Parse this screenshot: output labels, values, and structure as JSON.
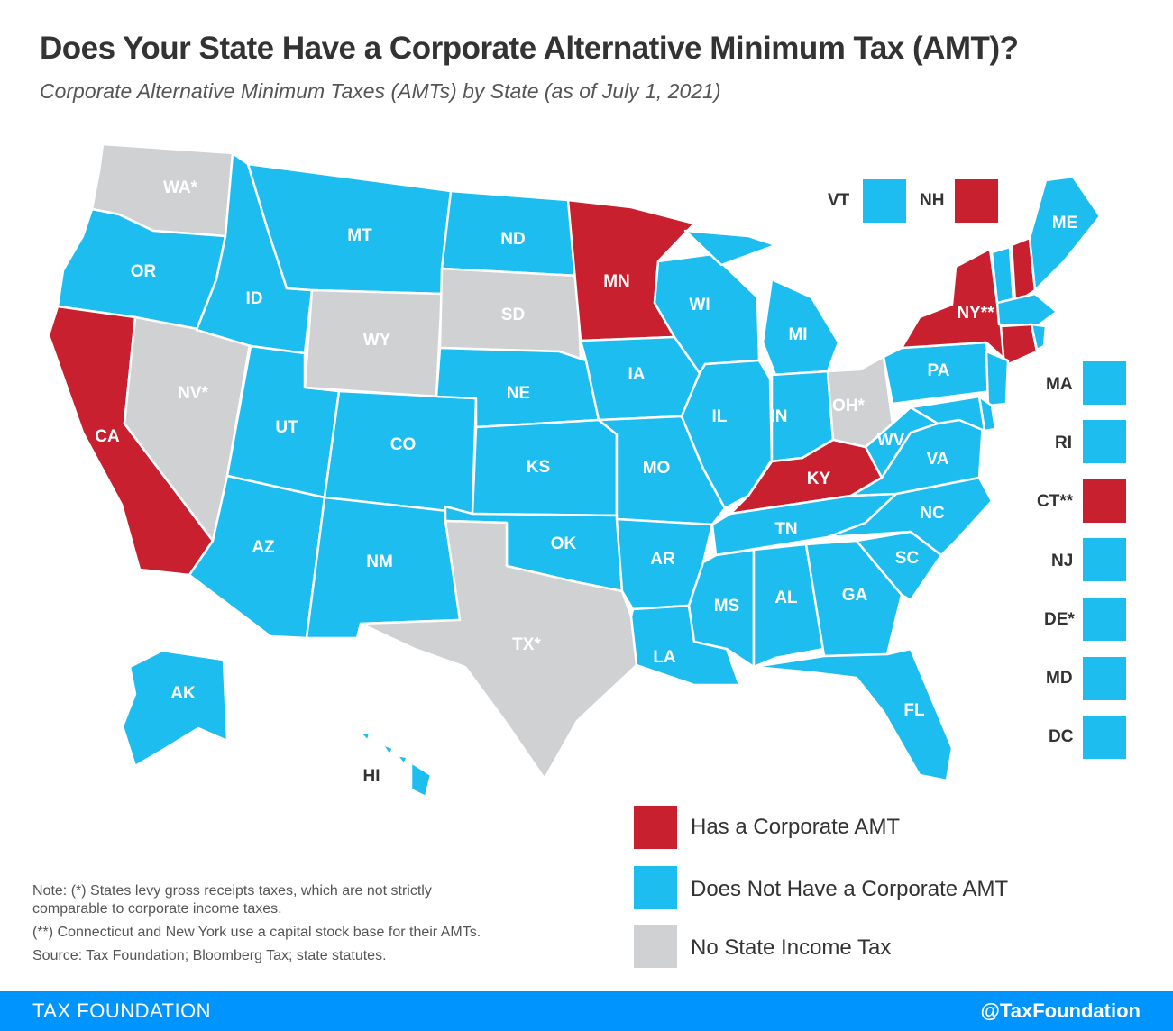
{
  "header": {
    "title": "Does Your State Have a Corporate Alternative Minimum Tax (AMT)?",
    "subtitle": "Corporate Alternative Minimum Taxes (AMTs) by State (as of July 1, 2021)"
  },
  "colors": {
    "amt": "#c8202f",
    "no_amt": "#1dbdef",
    "no_income_tax": "#d0d1d3",
    "footer": "#0094ff"
  },
  "states": {
    "WA": {
      "label": "WA*",
      "cat": "none"
    },
    "OR": {
      "label": "OR",
      "cat": "no"
    },
    "CA": {
      "label": "CA",
      "cat": "amt"
    },
    "NV": {
      "label": "NV*",
      "cat": "none"
    },
    "ID": {
      "label": "ID",
      "cat": "no"
    },
    "MT": {
      "label": "MT",
      "cat": "no"
    },
    "WY": {
      "label": "WY",
      "cat": "none"
    },
    "UT": {
      "label": "UT",
      "cat": "no"
    },
    "CO": {
      "label": "CO",
      "cat": "no"
    },
    "AZ": {
      "label": "AZ",
      "cat": "no"
    },
    "NM": {
      "label": "NM",
      "cat": "no"
    },
    "ND": {
      "label": "ND",
      "cat": "no"
    },
    "SD": {
      "label": "SD",
      "cat": "none"
    },
    "NE": {
      "label": "NE",
      "cat": "no"
    },
    "KS": {
      "label": "KS",
      "cat": "no"
    },
    "OK": {
      "label": "OK",
      "cat": "no"
    },
    "TX": {
      "label": "TX*",
      "cat": "none"
    },
    "MN": {
      "label": "MN",
      "cat": "amt"
    },
    "IA": {
      "label": "IA",
      "cat": "no"
    },
    "MO": {
      "label": "MO",
      "cat": "no"
    },
    "AR": {
      "label": "AR",
      "cat": "no"
    },
    "LA": {
      "label": "LA",
      "cat": "no"
    },
    "WI": {
      "label": "WI",
      "cat": "no"
    },
    "IL": {
      "label": "IL",
      "cat": "no"
    },
    "MI": {
      "label": "MI",
      "cat": "no"
    },
    "IN": {
      "label": "IN",
      "cat": "no"
    },
    "OH": {
      "label": "OH*",
      "cat": "none"
    },
    "KY": {
      "label": "KY",
      "cat": "amt"
    },
    "TN": {
      "label": "TN",
      "cat": "no"
    },
    "MS": {
      "label": "MS",
      "cat": "no"
    },
    "AL": {
      "label": "AL",
      "cat": "no"
    },
    "GA": {
      "label": "GA",
      "cat": "no"
    },
    "FL": {
      "label": "FL",
      "cat": "no"
    },
    "SC": {
      "label": "SC",
      "cat": "no"
    },
    "NC": {
      "label": "NC",
      "cat": "no"
    },
    "VA": {
      "label": "VA",
      "cat": "no"
    },
    "WV": {
      "label": "WV",
      "cat": "no"
    },
    "PA": {
      "label": "PA",
      "cat": "no"
    },
    "NY": {
      "label": "NY**",
      "cat": "amt"
    },
    "ME": {
      "label": "ME",
      "cat": "no"
    },
    "AK": {
      "label": "AK",
      "cat": "no"
    },
    "HI": {
      "label": "HI",
      "cat": "no"
    }
  },
  "small_states": {
    "VT": {
      "label": "VT",
      "cat": "no"
    },
    "NH": {
      "label": "NH",
      "cat": "amt"
    },
    "MA": {
      "label": "MA",
      "cat": "no"
    },
    "RI": {
      "label": "RI",
      "cat": "no"
    },
    "CT": {
      "label": "CT**",
      "cat": "amt"
    },
    "NJ": {
      "label": "NJ",
      "cat": "no"
    },
    "DE": {
      "label": "DE*",
      "cat": "no"
    },
    "MD": {
      "label": "MD",
      "cat": "no"
    },
    "DC": {
      "label": "DC",
      "cat": "no"
    }
  },
  "legend": {
    "amt": "Has a Corporate AMT",
    "no_amt": "Does Not Have a Corporate AMT",
    "none": "No State Income Tax"
  },
  "notes": {
    "line1": "Note: (*) States levy gross receipts taxes, which are not strictly comparable to corporate income taxes.",
    "line2": "(**) Connecticut and New York use a capital stock base for their AMTs.",
    "source": "Source: Tax Foundation; Bloomberg Tax; state statutes."
  },
  "footer": {
    "brand": "TAX FOUNDATION",
    "handle": "@TaxFoundation"
  }
}
